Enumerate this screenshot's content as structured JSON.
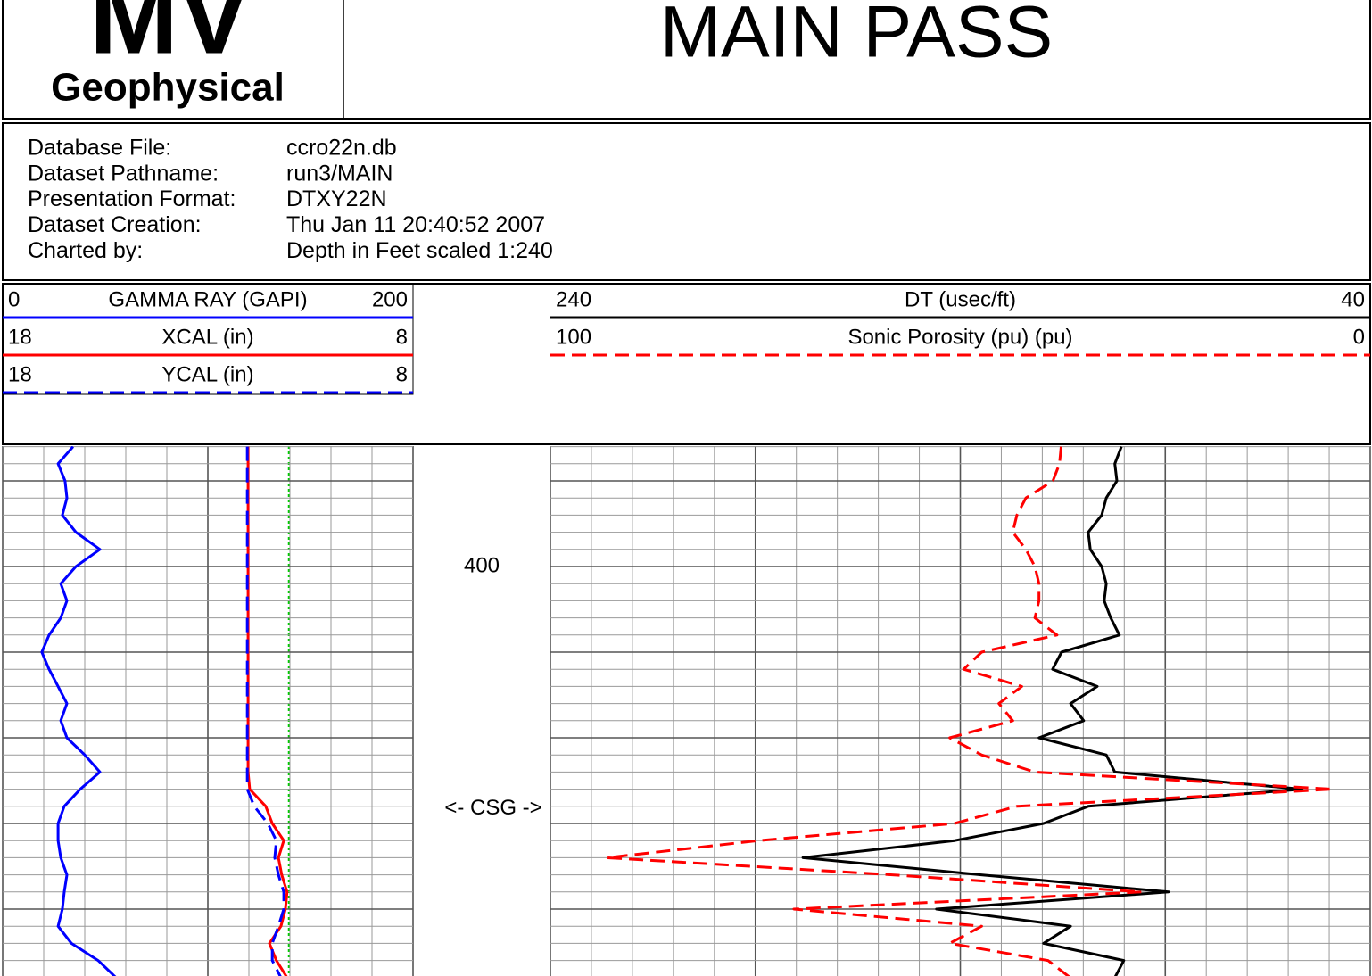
{
  "header": {
    "logo": "MV",
    "logo_sub": "Geophysical",
    "title": "MAIN PASS"
  },
  "info": [
    [
      "Database File:",
      "ccro22n.db"
    ],
    [
      "Dataset Pathname:",
      "run3/MAIN"
    ],
    [
      "Presentation Format:",
      "DTXY22N"
    ],
    [
      "Dataset Creation:",
      "Thu Jan 11 20:40:52 2007"
    ],
    [
      "Charted by:",
      "Depth in Feet scaled 1:240"
    ]
  ],
  "chart_data": {
    "type": "log",
    "depth": [
      386,
      388,
      390,
      392,
      394,
      396,
      398,
      400,
      402,
      404,
      406,
      408,
      410,
      412,
      414,
      416,
      418,
      420,
      422,
      424,
      426,
      428,
      430,
      432,
      434,
      436,
      438,
      440,
      442,
      444,
      446,
      448
    ],
    "ylim": [
      386,
      448
    ],
    "yticks": [
      400
    ],
    "grid": true,
    "annotations": [
      {
        "text": "<- CSG ->",
        "depth": 428.3
      }
    ],
    "tracks": [
      {
        "series": [
          {
            "name": "GAMMA RAY (GAPI)",
            "range": [
              0,
              200
            ],
            "color": "#0000ff",
            "dashed": false,
            "values": [
              34.3,
              27.0,
              30.4,
              31.3,
              29.1,
              35.7,
              47.4,
              35.7,
              28.3,
              31.3,
              28.3,
              22.6,
              19.1,
              22.6,
              27.0,
              31.3,
              28.3,
              31.3,
              40.0,
              47.4,
              37.8,
              30.0,
              27.0,
              27.0,
              28.3,
              31.3,
              30.0,
              29.1,
              27.0,
              33.5,
              46.5,
              55.2
            ]
          },
          {
            "name": "XCAL (in)",
            "range": [
              18,
              8
            ],
            "color": "#ff0000",
            "dashed": false,
            "values": [
              12.02,
              12.02,
              12.02,
              12.02,
              12.02,
              12.02,
              12.02,
              12.02,
              12.02,
              12.02,
              12.02,
              12.02,
              12.02,
              12.02,
              12.02,
              12.02,
              12.02,
              12.02,
              12.02,
              12.02,
              11.98,
              11.59,
              11.43,
              11.15,
              11.28,
              11.2,
              11.07,
              11.11,
              11.22,
              11.5,
              11.33,
              11.07
            ]
          },
          {
            "name": "YCAL (in)",
            "range": [
              18,
              8
            ],
            "color": "#0000ff",
            "dashed": true,
            "values": [
              12.04,
              12.04,
              12.04,
              12.04,
              12.04,
              12.04,
              12.04,
              12.04,
              12.04,
              12.04,
              12.04,
              12.04,
              12.04,
              12.04,
              12.04,
              12.04,
              12.04,
              12.04,
              12.04,
              12.04,
              12.04,
              11.87,
              11.54,
              11.33,
              11.37,
              11.28,
              11.15,
              11.15,
              11.28,
              11.43,
              11.43,
              11.22
            ]
          }
        ]
      },
      {
        "series": [
          {
            "name": "DT (usec/ft)",
            "range": [
              240,
              40
            ],
            "color": "#000000",
            "dashed": false,
            "values": [
              100.7,
              102.3,
              101.8,
              104.4,
              105.5,
              108.8,
              108.3,
              105.5,
              104.4,
              104.9,
              103.3,
              101.2,
              115.3,
              117.5,
              106.6,
              113.1,
              109.9,
              120.8,
              104.4,
              102.3,
              56.6,
              108.8,
              119.7,
              141.4,
              178.4,
              134.9,
              89.2,
              145.8,
              113.1,
              119.7,
              100.1,
              102.3
            ]
          },
          {
            "name": "Sonic Porosity (pu) (pu)",
            "range": [
              100,
              0
            ],
            "color": "#ff0000",
            "dashed": true,
            "values": [
              37.7,
              37.9,
              38.7,
              42.0,
              43.1,
              43.6,
              42.0,
              40.9,
              40.4,
              40.4,
              40.9,
              38.2,
              47.4,
              49.6,
              42.5,
              45.3,
              43.6,
              51.3,
              47.4,
              40.9,
              4.5,
              43.1,
              50.7,
              74.6,
              93.1,
              58.3,
              27.9,
              70.3,
              47.4,
              51.3,
              39.3,
              36.6
            ]
          }
        ]
      }
    ]
  }
}
